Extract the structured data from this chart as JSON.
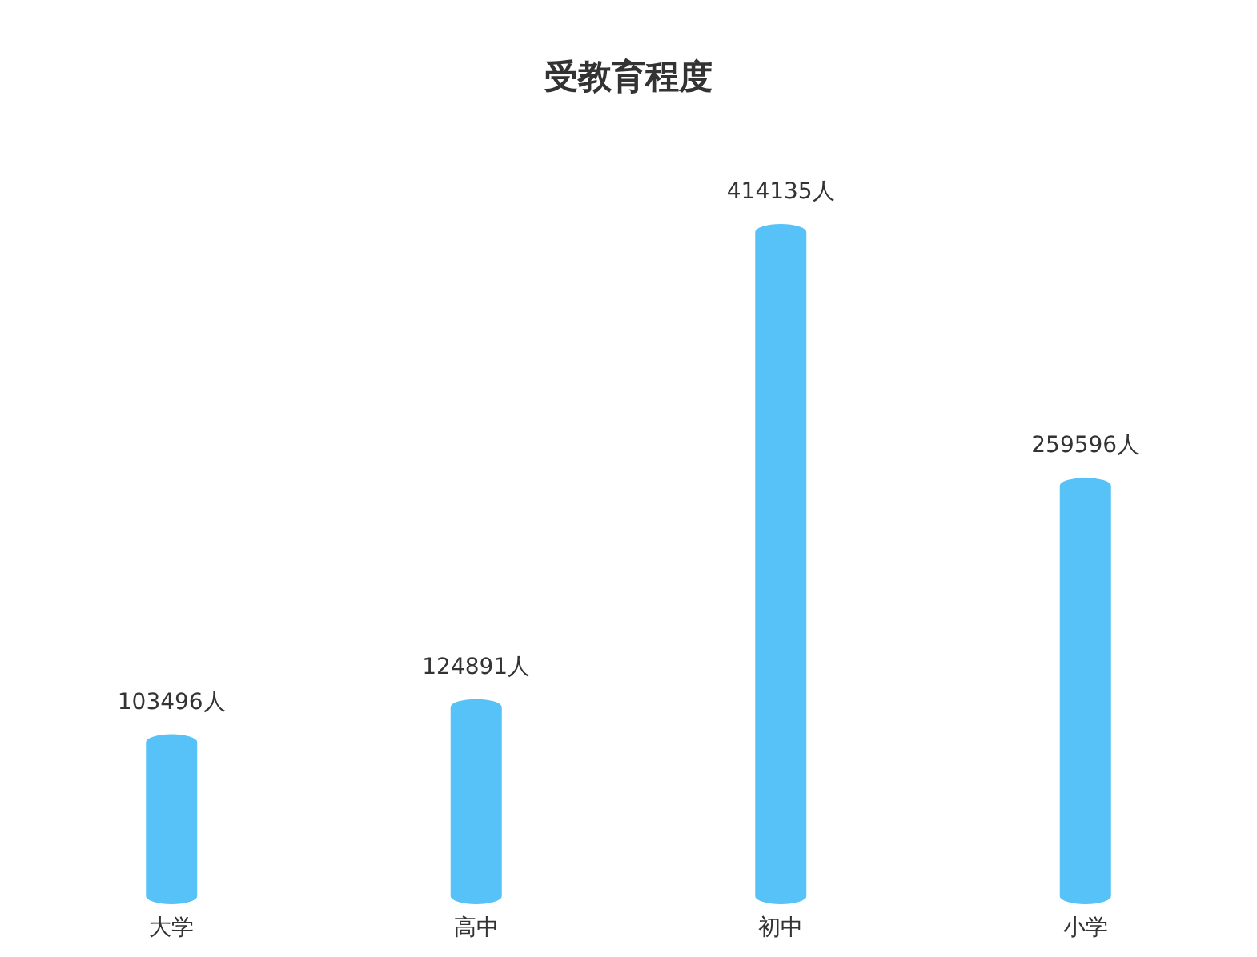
{
  "chart_data": {
    "type": "bar",
    "title": "受教育程度",
    "categories": [
      "大学",
      "高中",
      "初中",
      "小学"
    ],
    "values": [
      103496,
      124891,
      414135,
      259596
    ],
    "value_labels": [
      "103496人",
      "124891人",
      "414135人",
      "259596人"
    ],
    "color": "#56c2f8"
  }
}
